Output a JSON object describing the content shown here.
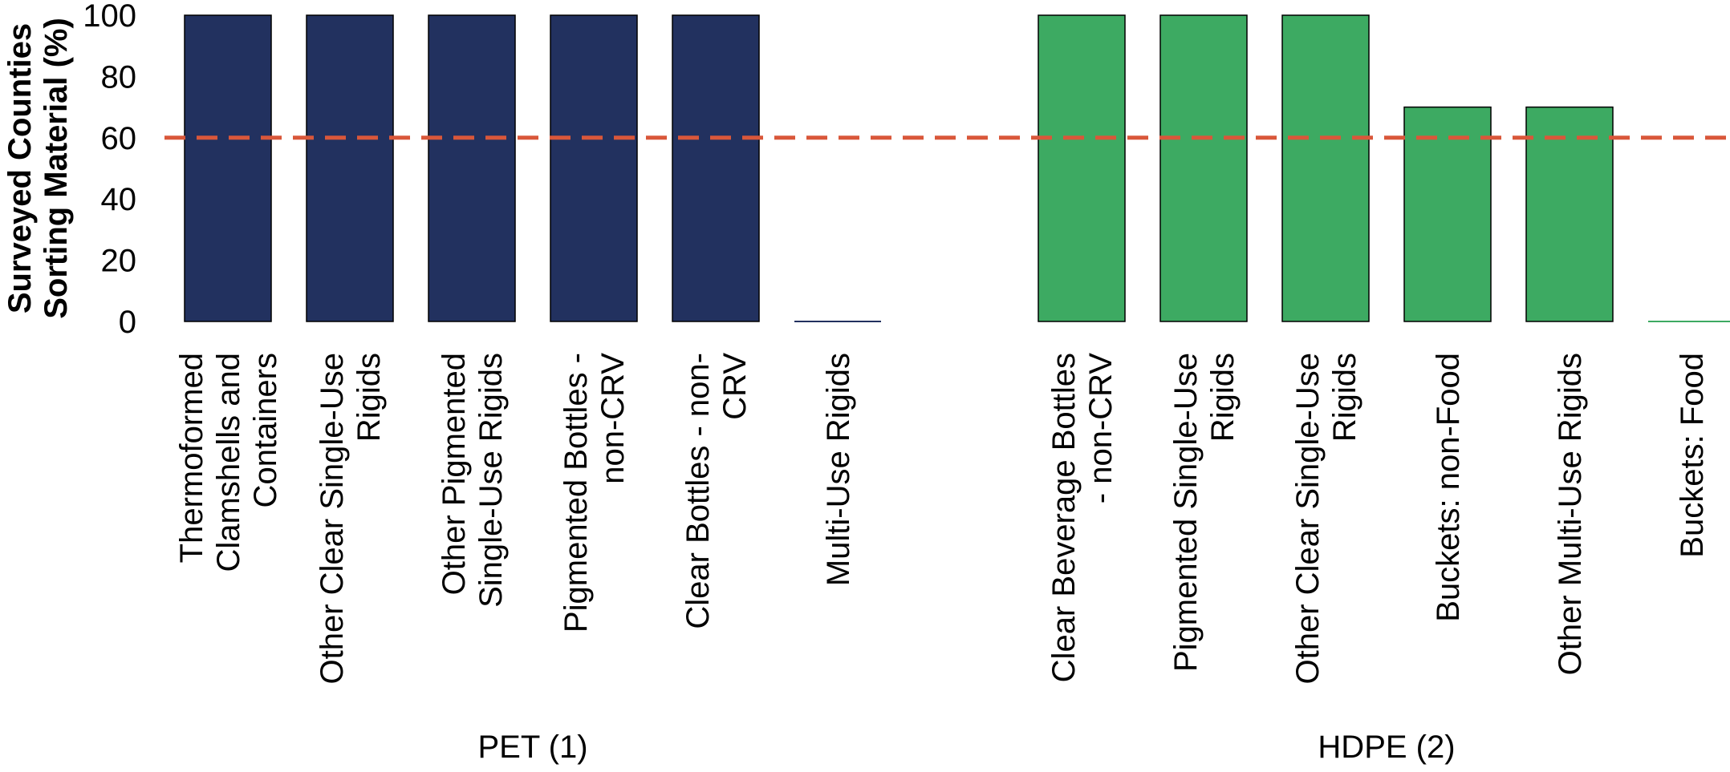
{
  "chart_data": {
    "type": "bar",
    "ylabel_lines": [
      "Surveyed Counties",
      "Sorting Material (%)"
    ],
    "yticks": [
      0,
      20,
      40,
      60,
      80,
      100
    ],
    "ylim": [
      0,
      100
    ],
    "reference_line": {
      "value": 60,
      "style": "dashed",
      "color": "#d9573a"
    },
    "groups": [
      {
        "name": "PET (1)",
        "color": "#22315f",
        "categories": [
          {
            "label": "Thermoformed Clamshells and Containers",
            "label_lines": [
              "Thermoformed",
              "Clamshells and",
              "Containers"
            ],
            "value": 100
          },
          {
            "label": "Other Clear Single-Use Rigids",
            "label_lines": [
              "Other Clear Single-Use",
              "Rigids"
            ],
            "value": 100
          },
          {
            "label": "Other Pigmented Single-Use Rigids",
            "label_lines": [
              "Other Pigmented",
              "Single-Use Rigids"
            ],
            "value": 100
          },
          {
            "label": "Pigmented Bottles - non-CRV",
            "label_lines": [
              "Pigmented Bottles -",
              "non-CRV"
            ],
            "value": 100
          },
          {
            "label": "Clear Bottles - non-CRV",
            "label_lines": [
              "Clear Bottles - non-",
              "CRV"
            ],
            "value": 100
          },
          {
            "label": "Multi-Use Rigids",
            "label_lines": [
              "Multi-Use Rigids"
            ],
            "value": 0
          }
        ]
      },
      {
        "name": "HDPE (2)",
        "color": "#3daa62",
        "categories": [
          {
            "label": "Clear Beverage Bottles - non-CRV",
            "label_lines": [
              "Clear Beverage Bottles",
              "- non-CRV"
            ],
            "value": 100
          },
          {
            "label": "Pigmented Single-Use Rigids",
            "label_lines": [
              "Pigmented Single-Use",
              "Rigids"
            ],
            "value": 100
          },
          {
            "label": "Other Clear Single-Use Rigids",
            "label_lines": [
              "Other Clear Single-Use",
              "Rigids"
            ],
            "value": 100
          },
          {
            "label": "Buckets: non-Food",
            "label_lines": [
              "Buckets: non-Food"
            ],
            "value": 70
          },
          {
            "label": "Other Multi-Use Rigids",
            "label_lines": [
              "Other Multi-Use Rigids"
            ],
            "value": 70
          },
          {
            "label": "Buckets: Food",
            "label_lines": [
              "Buckets: Food"
            ],
            "value": 0
          }
        ]
      }
    ],
    "grid": false,
    "legend": "none"
  }
}
